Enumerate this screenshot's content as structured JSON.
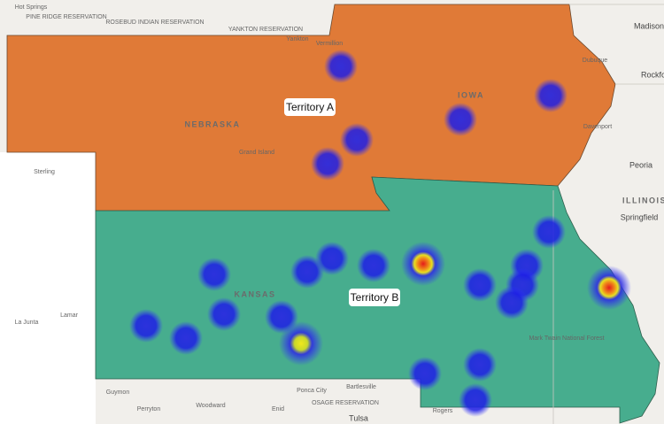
{
  "territories": [
    {
      "label": "Territory A"
    },
    {
      "label": "Territory B"
    }
  ],
  "state_labels": [
    "NEBRASKA",
    "IOWA",
    "KANSAS",
    "ILLINOIS"
  ],
  "place_labels": [
    "Hot Springs",
    "PINE RIDGE RESERVATION",
    "ROSEBUD INDIAN RESERVATION",
    "YANKTON RESERVATION",
    "Yankton",
    "Vermillion",
    "Madison",
    "Rockford",
    "Dubuque",
    "Davenport",
    "Peoria",
    "Springfield",
    "Sterling",
    "La Junta",
    "Lamar",
    "Guymon",
    "Perryton",
    "Woodward",
    "Enid",
    "Ponca City",
    "Bartlesville",
    "OSAGE RESERVATION",
    "Tulsa",
    "Rogers",
    "Grand Island",
    "Mark Twain National Forest"
  ]
}
